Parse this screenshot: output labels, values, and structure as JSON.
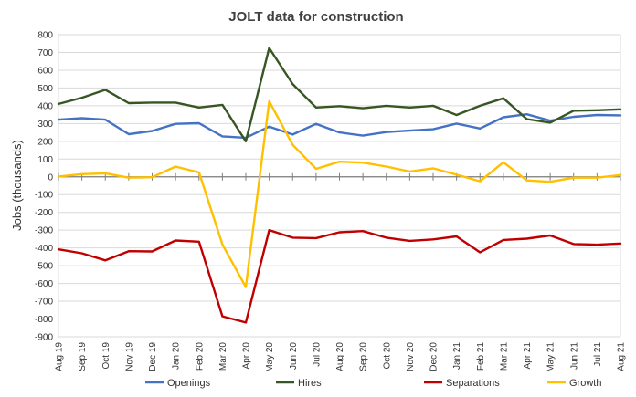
{
  "chart_data": {
    "type": "line",
    "title": "JOLT data for construction",
    "xlabel": "",
    "ylabel": "Jobs (thousands)",
    "ylim": [
      -900,
      800
    ],
    "ytick_step": 100,
    "grid": true,
    "legend_position": "bottom",
    "categories": [
      "Aug 19",
      "Sep 19",
      "Oct 19",
      "Nov 19",
      "Dec 19",
      "Jan 20",
      "Feb 20",
      "Mar 20",
      "Apr 20",
      "May 20",
      "Jun 20",
      "Jul 20",
      "Aug 20",
      "Sep 20",
      "Oct 20",
      "Nov 20",
      "Dec 20",
      "Jan 21",
      "Feb 21",
      "Mar 21",
      "Apr 21",
      "May 21",
      "Jun 21",
      "Jul 21",
      "Aug 21"
    ],
    "series": [
      {
        "name": "Openings",
        "color": "#4472C4",
        "values": [
          322,
          330,
          322,
          240,
          258,
          298,
          302,
          228,
          220,
          283,
          238,
          298,
          250,
          232,
          252,
          260,
          268,
          300,
          272,
          335,
          352,
          316,
          338,
          348,
          346
        ]
      },
      {
        "name": "Hires",
        "color": "#375623",
        "values": [
          410,
          445,
          490,
          415,
          418,
          418,
          390,
          405,
          200,
          725,
          522,
          390,
          398,
          386,
          400,
          390,
          400,
          348,
          400,
          442,
          325,
          305,
          372,
          375,
          380
        ]
      },
      {
        "name": "Separations",
        "color": "#C00000",
        "values": [
          -408,
          -430,
          -470,
          -418,
          -420,
          -358,
          -365,
          -785,
          -820,
          -300,
          -342,
          -345,
          -312,
          -305,
          -342,
          -360,
          -352,
          -335,
          -425,
          -355,
          -348,
          -330,
          -378,
          -382,
          -375
        ]
      },
      {
        "name": "Growth",
        "color": "#FFC000",
        "values": [
          2,
          15,
          20,
          -5,
          -2,
          58,
          25,
          -380,
          -620,
          425,
          180,
          45,
          85,
          80,
          58,
          30,
          48,
          12,
          -25,
          82,
          -20,
          -28,
          -5,
          -5,
          10
        ]
      }
    ]
  }
}
